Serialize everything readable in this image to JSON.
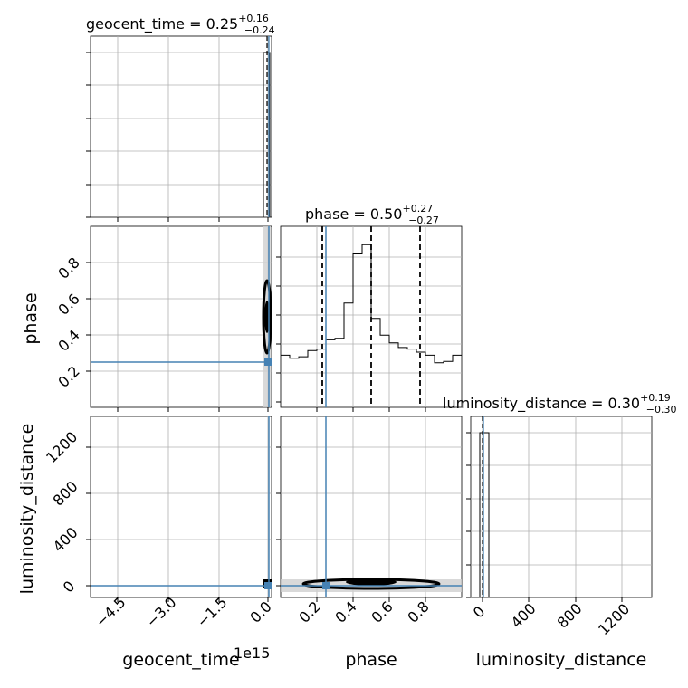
{
  "chart_data": {
    "type": "corner",
    "parameters": [
      "geocent_time",
      "phase",
      "luminosity_distance"
    ],
    "titles": {
      "geocent_time": {
        "name": "geocent_time",
        "median": "0.25",
        "plus": "+0.16",
        "minus": "−0.24"
      },
      "phase": {
        "name": "phase",
        "median": "0.50",
        "plus": "+0.27",
        "minus": "−0.27"
      },
      "luminosity_distance": {
        "name": "luminosity_distance",
        "median": "0.30",
        "plus": "+0.19",
        "minus": "−0.30"
      }
    },
    "axis_labels": {
      "geocent_time": "geocent_time",
      "phase": "phase",
      "luminosity_distance": "luminosity_distance"
    },
    "offset_text": "1e15",
    "tick_labels": {
      "geocent_time_x": [
        "−4.5",
        "−3.0",
        "−1.5",
        "0.0"
      ],
      "phase_x": [
        "0.2",
        "0.4",
        "0.6",
        "0.8"
      ],
      "phase_y": [
        "0.2",
        "0.4",
        "0.6",
        "0.8"
      ],
      "luminosity_distance_x": [
        "0",
        "400",
        "800",
        "1200"
      ],
      "luminosity_distance_y": [
        "0",
        "400",
        "800",
        "1200"
      ]
    },
    "ranges": {
      "geocent_time": [
        -5.3,
        0.1
      ],
      "phase": [
        0.0,
        1.0
      ],
      "luminosity_distance": [
        -85,
        1480
      ]
    },
    "truths": {
      "geocent_time": 0.0,
      "phase": 0.25,
      "luminosity_distance": 0.0
    },
    "quantile_lines": {
      "phase": [
        0.23,
        0.5,
        0.77
      ]
    },
    "phase_hist": {
      "bins": 20,
      "values": [
        0.34,
        0.32,
        0.33,
        0.37,
        0.38,
        0.44,
        0.45,
        0.68,
        1.0,
        1.06,
        0.58,
        0.47,
        0.42,
        0.39,
        0.38,
        0.36,
        0.34,
        0.29,
        0.3,
        0.34
      ]
    },
    "grid": true,
    "colors": {
      "truth": "#4682b4",
      "hist": "#000000",
      "grid": "#b0b0b0",
      "quantile": "#000000"
    }
  }
}
